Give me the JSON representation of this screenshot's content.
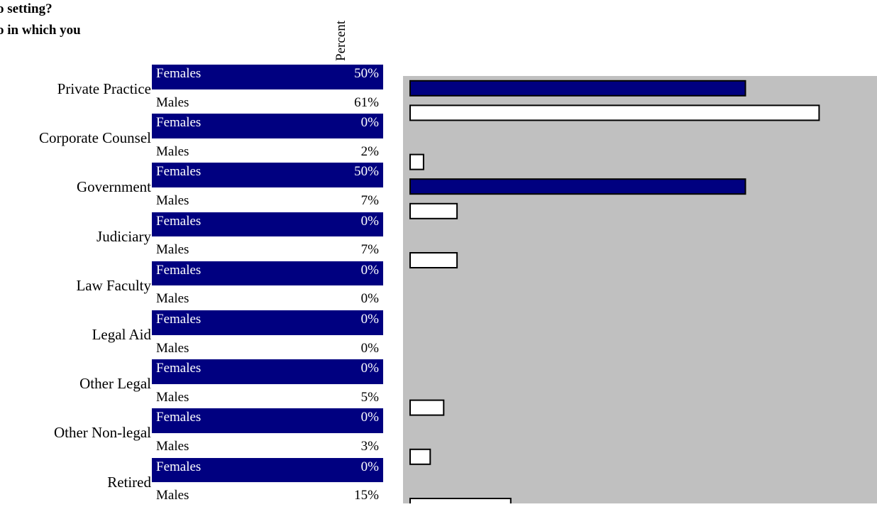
{
  "title_lines": [
    "o setting?",
    "o in which you"
  ],
  "column_header": "Percent",
  "colors": {
    "female_bar": "#000080",
    "male_bar": "#ffffff",
    "plot_bg": "#c0c0c0"
  },
  "chart_data": {
    "type": "bar",
    "orientation": "horizontal",
    "title": "",
    "xlabel": "",
    "ylabel": "Percent",
    "xlim": [
      0,
      70
    ],
    "grid": false,
    "categories": [
      "Private Practice",
      "Corporate Counsel",
      "Government",
      "Judiciary",
      "Law Faculty",
      "Legal Aid",
      "Other Legal",
      "Other Non-legal",
      "Retired"
    ],
    "series": [
      {
        "name": "Females",
        "values": [
          50,
          0,
          50,
          0,
          0,
          0,
          0,
          0,
          0
        ],
        "labels": [
          "50%",
          "0%",
          "50%",
          "0%",
          "0%",
          "0%",
          "0%",
          "0%",
          "0%"
        ]
      },
      {
        "name": "Males",
        "values": [
          61,
          2,
          7,
          7,
          0,
          0,
          5,
          3,
          15
        ],
        "labels": [
          "61%",
          "2%",
          "7%",
          "7%",
          "0%",
          "0%",
          "5%",
          "3%",
          "15%"
        ]
      }
    ]
  }
}
